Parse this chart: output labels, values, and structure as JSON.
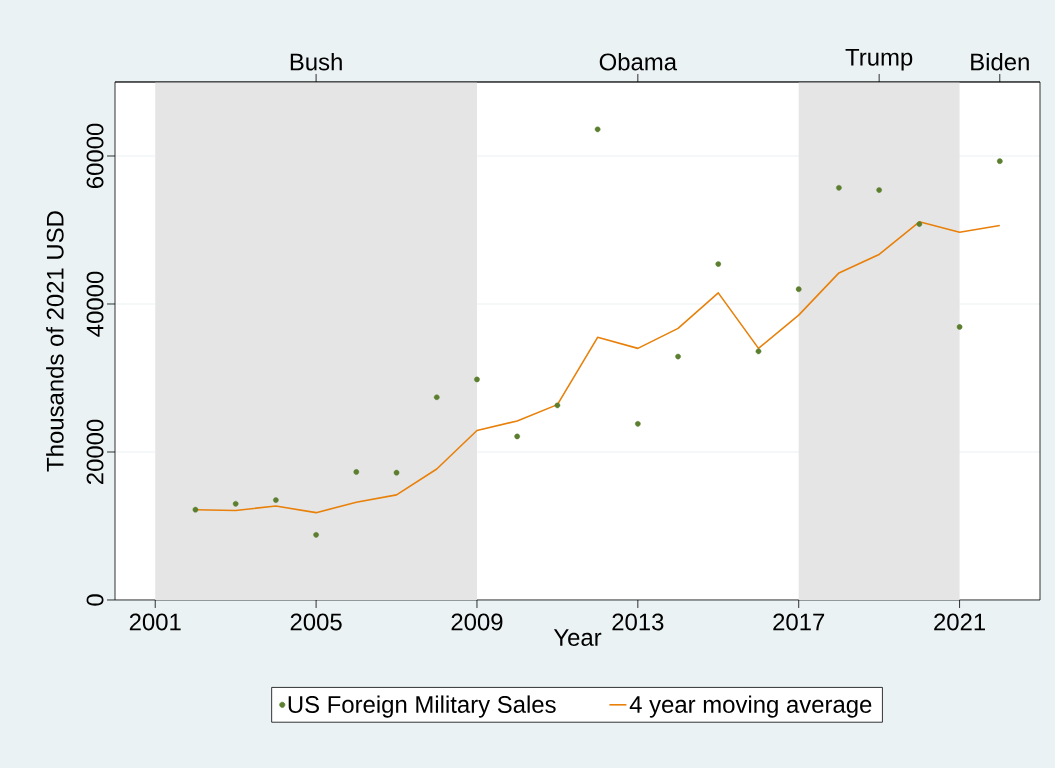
{
  "chart_data": {
    "type": "scatter",
    "xlabel": "Year",
    "ylabel": "Thousands of 2021 USD",
    "x": [
      2002,
      2003,
      2004,
      2005,
      2006,
      2007,
      2008,
      2009,
      2010,
      2011,
      2012,
      2013,
      2014,
      2015,
      2016,
      2017,
      2018,
      2019,
      2020,
      2021,
      2022
    ],
    "series": [
      {
        "name": "US Foreign Military Sales",
        "marker": "circle",
        "color": "#5b7f2e",
        "values": [
          12200,
          13000,
          13500,
          8800,
          17300,
          17200,
          27400,
          29800,
          22100,
          26300,
          63600,
          23800,
          32900,
          45400,
          33600,
          42000,
          55700,
          55400,
          50800,
          36900,
          59300
        ]
      },
      {
        "name": "4 year moving average",
        "type": "line",
        "marker": "none",
        "color": "#e8800a",
        "values": [
          12200,
          12100,
          12700,
          11800,
          13200,
          14200,
          17700,
          22900,
          24200,
          26400,
          35500,
          34000,
          36700,
          41500,
          34000,
          38500,
          44200,
          46700,
          51100,
          49700,
          50600
        ]
      }
    ],
    "xlim": [
      2000,
      2023
    ],
    "ylim": [
      0,
      70000
    ],
    "xticks": [
      2001,
      2005,
      2009,
      2013,
      2017,
      2021
    ],
    "yticks": [
      0,
      20000,
      40000,
      60000
    ],
    "annotations": [
      {
        "text": "Bush",
        "x": 2005
      },
      {
        "text": "Obama",
        "x": 2013
      },
      {
        "text": "Trump",
        "x": 2019
      },
      {
        "text": "Biden",
        "x": 2022
      }
    ],
    "bands": [
      {
        "axis": "x",
        "from": 2001,
        "to": 2009,
        "color": "#e5e5e5"
      },
      {
        "axis": "x",
        "from": 2017,
        "to": 2021,
        "color": "#e5e5e5"
      }
    ],
    "grid": "y",
    "legend": "bottom"
  }
}
